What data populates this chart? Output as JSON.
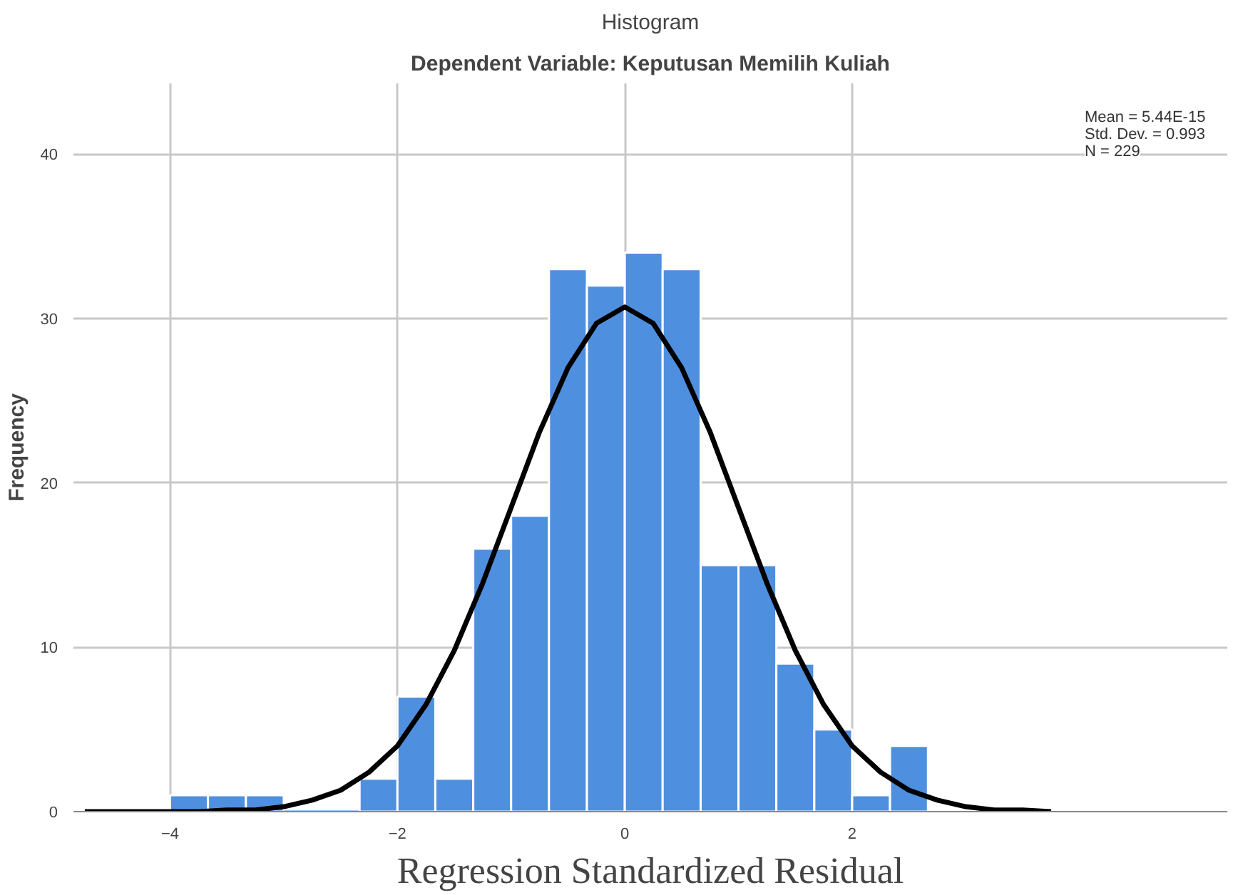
{
  "chart_data": {
    "type": "histogram",
    "title": "Histogram",
    "subtitle": "Dependent Variable: Keputusan Memilih Kuliah",
    "xlabel": "Regression Standardized Residual",
    "ylabel": "Frequency",
    "bins": [
      -4,
      -3.667,
      -3.333,
      -3,
      -2.667,
      -2.333,
      -2,
      -1.667,
      -1.333,
      -1,
      -0.667,
      -0.333,
      0,
      0.333,
      0.667,
      1,
      1.333,
      1.667,
      2,
      2.333,
      2.667
    ],
    "values": [
      1,
      1,
      1,
      0,
      0,
      2,
      7,
      2,
      16,
      18,
      33,
      32,
      34,
      33,
      15,
      15,
      9,
      5,
      1,
      4
    ],
    "color": "#4f8fdf",
    "series": [
      {
        "type": "line",
        "color": "#000000",
        "x": [
          -4.75,
          -4.5,
          -4.25,
          -4,
          -3.75,
          -3.5,
          -3.25,
          -3,
          -2.75,
          -2.5,
          -2.25,
          -2,
          -1.75,
          -1.5,
          -1.25,
          -1,
          -0.75,
          -0.5,
          -0.25,
          0,
          0.25,
          0.5,
          0.75,
          1,
          1.25,
          1.5,
          1.75,
          2,
          2.25,
          2.5,
          2.75,
          3,
          3.25,
          3.5,
          3.75
        ],
        "values": [
          0,
          0,
          0,
          0,
          0,
          0.1,
          0.1,
          0.3,
          0.7,
          1.3,
          2.4,
          4.0,
          6.5,
          9.8,
          13.9,
          18.5,
          23.1,
          27.0,
          29.7,
          30.7,
          29.7,
          27.0,
          23.1,
          18.5,
          13.9,
          9.8,
          6.5,
          4.0,
          2.4,
          1.3,
          0.7,
          0.3,
          0.1,
          0.1,
          0
        ]
      }
    ],
    "xlim": [
      -4.85,
      5.3
    ],
    "ylim": [
      0,
      44.3
    ],
    "xticks": [
      -4,
      -2,
      0,
      2
    ],
    "yticks": [
      0,
      10,
      20,
      30,
      40
    ],
    "grid": true,
    "annotations": [
      "Mean = 5.44E-15",
      "Std. Dev. = 0.993",
      "N = 229"
    ]
  }
}
